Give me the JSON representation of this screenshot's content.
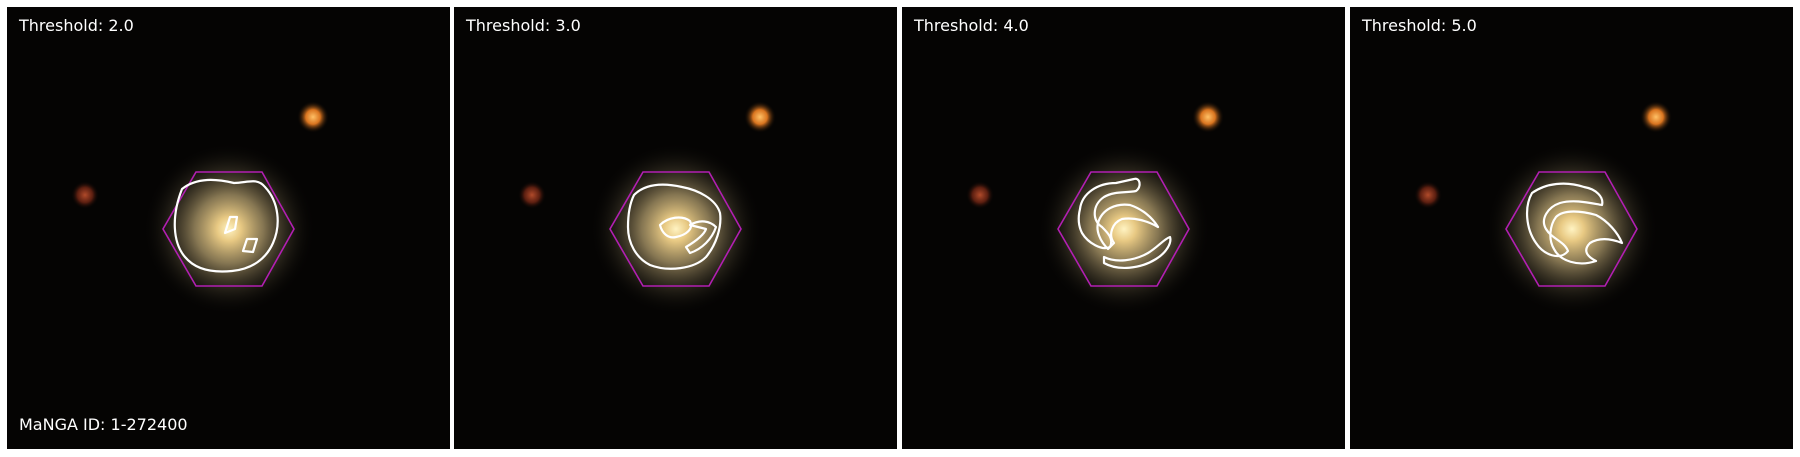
{
  "panels": [
    {
      "threshold_label": "Threshold: 2.0",
      "threshold": 2.0
    },
    {
      "threshold_label": "Threshold: 3.0",
      "threshold": 3.0
    },
    {
      "threshold_label": "Threshold: 4.0",
      "threshold": 4.0
    },
    {
      "threshold_label": "Threshold: 5.0",
      "threshold": 5.0
    }
  ],
  "manga_id_label": "MaNGA ID: 1-272400",
  "colors": {
    "background": "#050403",
    "galaxy_core": "#f2d68c",
    "galaxy_halo": "#8a7a55",
    "star_orange": "#ff9a2e",
    "star_red": "#a63a1c",
    "hexagon": "#b21fb2",
    "contour": "#ffffff"
  }
}
